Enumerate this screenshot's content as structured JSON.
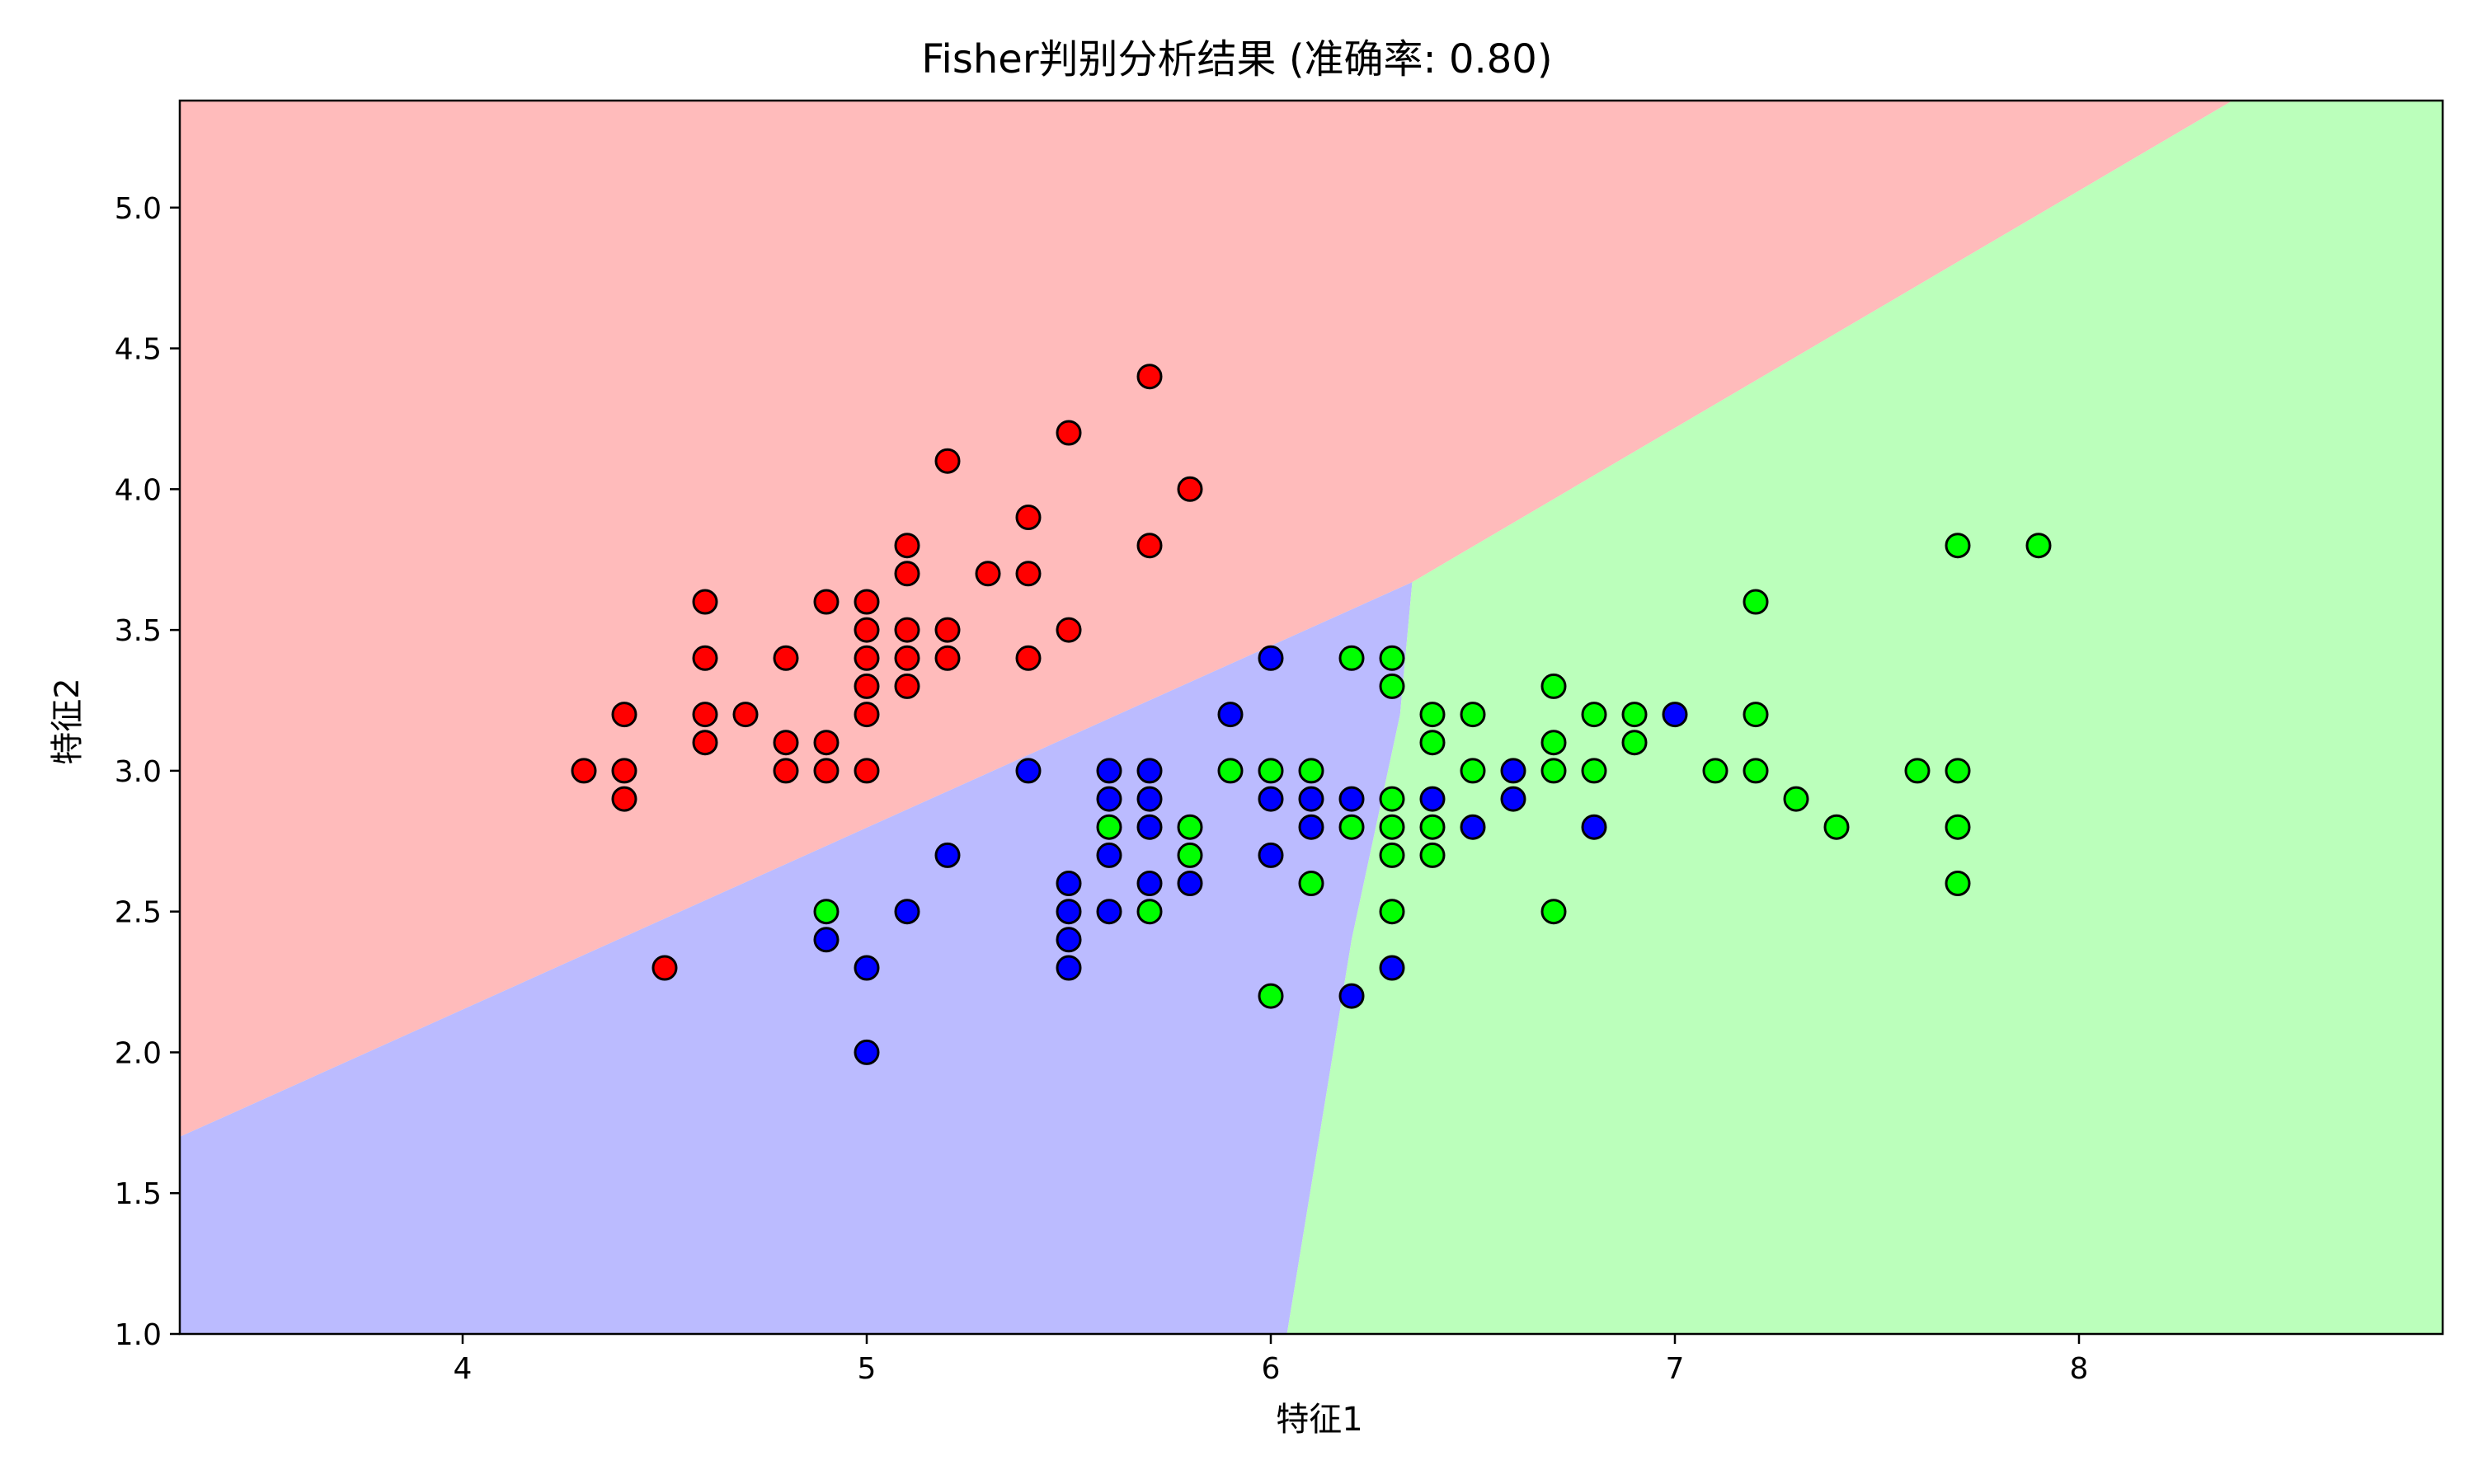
{
  "chart_data": {
    "type": "scatter",
    "title": "Fisher判别分析结果 (准确率: 0.80)",
    "xlabel": "特征1",
    "ylabel": "特征2",
    "xlim": [
      3.3,
      8.9
    ],
    "ylim": [
      1.0,
      5.38
    ],
    "xticks": [
      4,
      5,
      6,
      7,
      8
    ],
    "yticks": [
      1.0,
      1.5,
      2.0,
      2.5,
      3.0,
      3.5,
      4.0,
      4.5,
      5.0
    ],
    "grid": false,
    "regions": [
      {
        "class": "red",
        "color": "#ffbbbb"
      },
      {
        "class": "blue",
        "color": "#bbbbff"
      },
      {
        "class": "green",
        "color": "#bbffbb"
      }
    ],
    "series": [
      {
        "color": "#ff0000",
        "points": [
          [
            4.3,
            3.0
          ],
          [
            4.4,
            3.2
          ],
          [
            4.4,
            3.0
          ],
          [
            4.4,
            2.9
          ],
          [
            4.5,
            2.3
          ],
          [
            4.6,
            3.6
          ],
          [
            4.6,
            3.4
          ],
          [
            4.6,
            3.2
          ],
          [
            4.6,
            3.1
          ],
          [
            4.7,
            3.2
          ],
          [
            4.8,
            3.4
          ],
          [
            4.8,
            3.1
          ],
          [
            4.8,
            3.0
          ],
          [
            4.9,
            3.6
          ],
          [
            4.9,
            3.1
          ],
          [
            4.9,
            3.0
          ],
          [
            5.0,
            3.6
          ],
          [
            5.0,
            3.5
          ],
          [
            5.0,
            3.4
          ],
          [
            5.0,
            3.3
          ],
          [
            5.0,
            3.2
          ],
          [
            5.0,
            3.0
          ],
          [
            5.1,
            3.8
          ],
          [
            5.1,
            3.7
          ],
          [
            5.1,
            3.5
          ],
          [
            5.1,
            3.4
          ],
          [
            5.1,
            3.3
          ],
          [
            5.2,
            4.1
          ],
          [
            5.2,
            3.5
          ],
          [
            5.2,
            3.4
          ],
          [
            5.3,
            3.7
          ],
          [
            5.4,
            3.9
          ],
          [
            5.4,
            3.7
          ],
          [
            5.4,
            3.4
          ],
          [
            5.5,
            4.2
          ],
          [
            5.5,
            3.5
          ],
          [
            5.7,
            4.4
          ],
          [
            5.7,
            3.8
          ],
          [
            5.8,
            4.0
          ]
        ]
      },
      {
        "color": "#0000ff",
        "points": [
          [
            4.9,
            2.4
          ],
          [
            5.0,
            2.3
          ],
          [
            5.0,
            2.0
          ],
          [
            5.1,
            2.5
          ],
          [
            5.2,
            2.7
          ],
          [
            5.4,
            3.0
          ],
          [
            5.5,
            2.6
          ],
          [
            5.5,
            2.5
          ],
          [
            5.5,
            2.4
          ],
          [
            5.5,
            2.3
          ],
          [
            5.6,
            3.0
          ],
          [
            5.6,
            2.9
          ],
          [
            5.6,
            2.7
          ],
          [
            5.6,
            2.5
          ],
          [
            5.7,
            3.0
          ],
          [
            5.7,
            2.9
          ],
          [
            5.7,
            2.8
          ],
          [
            5.7,
            2.6
          ],
          [
            5.8,
            2.6
          ],
          [
            5.9,
            3.2
          ],
          [
            6.0,
            3.4
          ],
          [
            6.0,
            2.9
          ],
          [
            6.0,
            2.7
          ],
          [
            6.1,
            2.9
          ],
          [
            6.1,
            2.8
          ],
          [
            6.2,
            2.9
          ],
          [
            6.2,
            2.2
          ],
          [
            6.3,
            2.3
          ],
          [
            6.4,
            2.9
          ],
          [
            6.5,
            2.8
          ],
          [
            6.6,
            3.0
          ],
          [
            6.6,
            2.9
          ],
          [
            6.8,
            2.8
          ],
          [
            7.0,
            3.2
          ]
        ]
      },
      {
        "color": "#00ff00",
        "points": [
          [
            4.9,
            2.5
          ],
          [
            5.6,
            2.8
          ],
          [
            5.7,
            2.5
          ],
          [
            5.8,
            2.8
          ],
          [
            5.8,
            2.7
          ],
          [
            5.9,
            3.0
          ],
          [
            6.0,
            3.0
          ],
          [
            6.0,
            2.2
          ],
          [
            6.1,
            3.0
          ],
          [
            6.1,
            2.6
          ],
          [
            6.2,
            3.4
          ],
          [
            6.2,
            2.8
          ],
          [
            6.3,
            3.4
          ],
          [
            6.3,
            3.3
          ],
          [
            6.3,
            2.9
          ],
          [
            6.3,
            2.8
          ],
          [
            6.3,
            2.7
          ],
          [
            6.3,
            2.5
          ],
          [
            6.4,
            3.2
          ],
          [
            6.4,
            3.1
          ],
          [
            6.4,
            2.8
          ],
          [
            6.4,
            2.7
          ],
          [
            6.5,
            3.2
          ],
          [
            6.5,
            3.0
          ],
          [
            6.7,
            3.3
          ],
          [
            6.7,
            3.1
          ],
          [
            6.7,
            3.0
          ],
          [
            6.7,
            2.5
          ],
          [
            6.8,
            3.2
          ],
          [
            6.8,
            3.0
          ],
          [
            6.9,
            3.2
          ],
          [
            6.9,
            3.1
          ],
          [
            7.1,
            3.0
          ],
          [
            7.2,
            3.6
          ],
          [
            7.2,
            3.2
          ],
          [
            7.2,
            3.0
          ],
          [
            7.3,
            2.9
          ],
          [
            7.4,
            2.8
          ],
          [
            7.6,
            3.0
          ],
          [
            7.7,
            3.8
          ],
          [
            7.7,
            3.0
          ],
          [
            7.7,
            2.8
          ],
          [
            7.7,
            2.6
          ],
          [
            7.9,
            3.8
          ]
        ]
      }
    ]
  }
}
